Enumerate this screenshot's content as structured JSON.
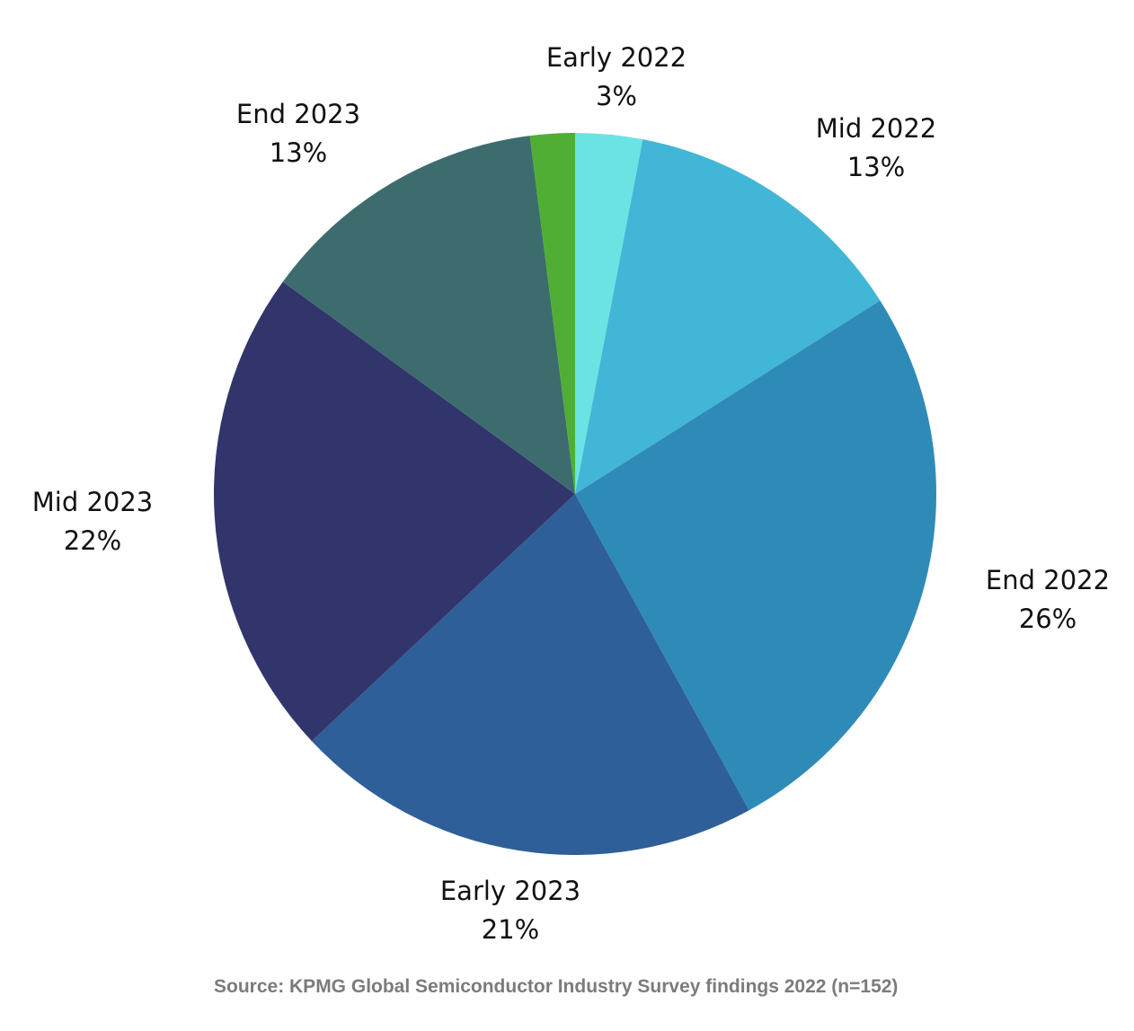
{
  "chart_data": {
    "type": "pie",
    "start": "top",
    "direction": "clockwise",
    "slices": [
      {
        "label": "Early 2022",
        "value": 3,
        "value_label": "3%",
        "color": "#6ce3e3"
      },
      {
        "label": "Mid 2022",
        "value": 13,
        "value_label": "13%",
        "color": "#42b6d6"
      },
      {
        "label": "End 2022",
        "value": 26,
        "value_label": "26%",
        "color": "#2e8bb8"
      },
      {
        "label": "Early 2023",
        "value": 21,
        "value_label": "21%",
        "color": "#2f5f98"
      },
      {
        "label": "Mid 2023",
        "value": 22,
        "value_label": "22%",
        "color": "#31356b"
      },
      {
        "label": "End 2023",
        "value": 13,
        "value_label": "13%",
        "color": "#3d6c6e"
      },
      {
        "label": "",
        "value": 2,
        "value_label": "",
        "color": "#4fae33"
      }
    ],
    "legend": "none",
    "source": "Source: KPMG Global Semiconductor Industry Survey findings 2022 (n=152)"
  }
}
